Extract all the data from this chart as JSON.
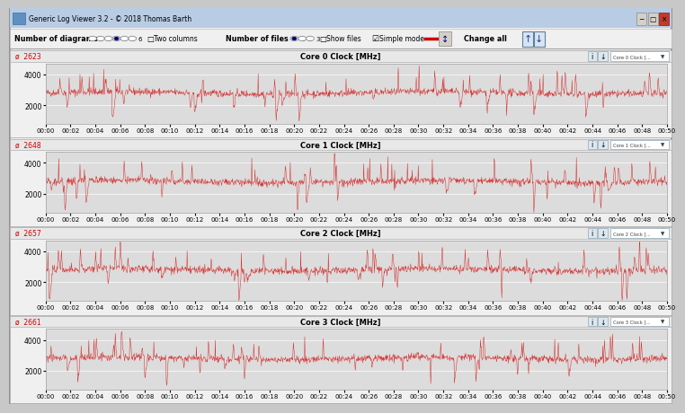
{
  "title": "Generic Log Viewer 3.2 - © 2018 Thomas Barth",
  "panels": [
    {
      "title": "Core 0 Clock [MHz]",
      "avg": "2623",
      "ylim": [
        800,
        4700
      ],
      "yticks": [
        2000,
        4000
      ]
    },
    {
      "title": "Core 1 Clock [MHz]",
      "avg": "2648",
      "ylim": [
        800,
        4700
      ],
      "yticks": [
        2000,
        4000
      ]
    },
    {
      "title": "Core 2 Clock [MHz]",
      "avg": "2657",
      "ylim": [
        800,
        4700
      ],
      "yticks": [
        2000,
        4000
      ]
    },
    {
      "title": "Core 3 Clock [MHz]",
      "avg": "2661",
      "ylim": [
        800,
        4700
      ],
      "yticks": [
        2000,
        4000
      ]
    }
  ],
  "xtick_labels": [
    "00:00",
    "00:02",
    "00:04",
    "00:06",
    "00:08",
    "00:10",
    "00:12",
    "00:14",
    "00:16",
    "00:18",
    "00:20",
    "00:22",
    "00:24",
    "00:26",
    "00:28",
    "00:30",
    "00:32",
    "00:34",
    "00:36",
    "00:38",
    "00:40",
    "00:42",
    "00:44",
    "00:46",
    "00:48",
    "00:50"
  ],
  "line_color": "#d42020",
  "chart_bg": "#e0e0e0",
  "panel_header_bg": "#f0f0f0",
  "window_bg": "#f0f0f0",
  "window_frame": "#c8c8c8",
  "titlebar_bg": "#b8cce4",
  "toolbar_bg": "#f0f0f0",
  "avg_color": "#cc0000",
  "seed": 42,
  "n_points": 1550
}
